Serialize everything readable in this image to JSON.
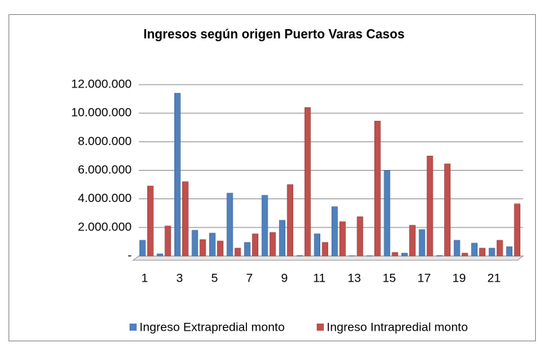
{
  "chart_data": {
    "type": "bar",
    "title": "Ingresos según origen Puerto Varas Casos",
    "categories": [
      "1",
      null,
      "3",
      null,
      "5",
      null,
      "7",
      null,
      "9",
      null,
      "11",
      null,
      "13",
      null,
      "15",
      null,
      "17",
      null,
      "19",
      null,
      "21",
      null
    ],
    "series": [
      {
        "name": "Ingreso Extrapredial monto",
        "color": "#4f81bd",
        "values": [
          1100000,
          150000,
          11400000,
          1800000,
          1600000,
          4400000,
          950000,
          4250000,
          2500000,
          30000,
          1550000,
          3450000,
          20000,
          20000,
          6000000,
          200000,
          1850000,
          30000,
          1100000,
          900000,
          550000,
          650000
        ]
      },
      {
        "name": "Ingreso Intrapredial monto",
        "color": "#c0504d",
        "values": [
          4900000,
          2100000,
          5200000,
          1150000,
          1050000,
          550000,
          1550000,
          1650000,
          5000000,
          10400000,
          950000,
          2400000,
          2750000,
          9450000,
          250000,
          2150000,
          7000000,
          6450000,
          200000,
          550000,
          1100000,
          3650000
        ]
      }
    ],
    "ylim": [
      0,
      12000000
    ],
    "yticks": [
      {
        "value": 0,
        "label": "-"
      },
      {
        "value": 2000000,
        "label": "2.000.000"
      },
      {
        "value": 4000000,
        "label": "4.000.000"
      },
      {
        "value": 6000000,
        "label": "6.000.000"
      },
      {
        "value": 8000000,
        "label": "8.000.000"
      },
      {
        "value": 10000000,
        "label": "10.000.000"
      },
      {
        "value": 12000000,
        "label": "12.000.000"
      }
    ],
    "grid": true,
    "legend": "bottom"
  }
}
